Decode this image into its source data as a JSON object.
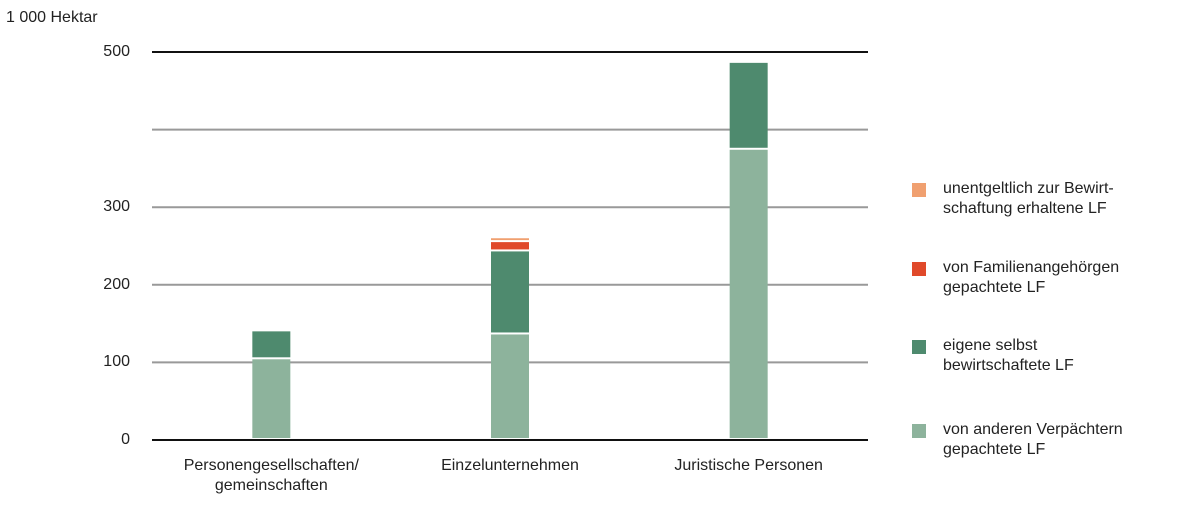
{
  "chart_data": {
    "type": "stacked_bar",
    "y_unit_label": "1 000 Hektar",
    "categories": [
      "Personengesellschaften/\ngemeinschaften",
      "Einzelunternehmen",
      "Juristische Personen"
    ],
    "series": [
      {
        "name": "von anderen Verpächtern\ngepachtete LF",
        "color": "#8db39c",
        "values": [
          104,
          136,
          374
        ]
      },
      {
        "name": "eigene selbst\nbewirtschaftete LF",
        "color": "#4e8a6e",
        "values": [
          36,
          107,
          112
        ]
      },
      {
        "name": "von Familienangehörgen\ngepachtete LF",
        "color": "#e0492a",
        "values": [
          0,
          12,
          0
        ]
      },
      {
        "name": "unentgeltlich zur Bewirt-\nschaftung erhaltene LF",
        "color": "#f0a070",
        "values": [
          0,
          5,
          0
        ]
      }
    ],
    "ylim": [
      0,
      500
    ],
    "yticks": [
      0,
      100,
      200,
      300,
      500
    ],
    "gridlines": [
      0,
      100,
      200,
      300,
      400,
      500
    ],
    "grid": true
  }
}
